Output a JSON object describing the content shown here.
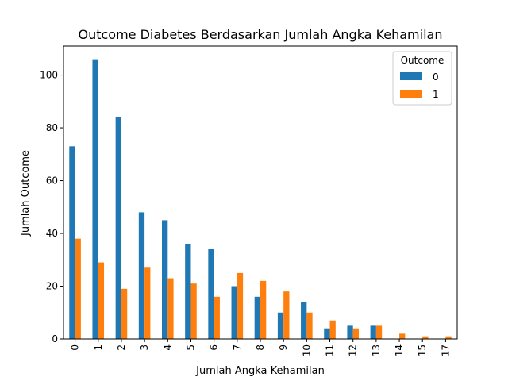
{
  "chart_data": {
    "type": "bar",
    "title": "Outcome Diabetes Berdasarkan Jumlah Angka Kehamilan",
    "xlabel": "Jumlah Angka Kehamilan",
    "ylabel": "Jumlah Outcome",
    "categories": [
      "0",
      "1",
      "2",
      "3",
      "4",
      "5",
      "6",
      "7",
      "8",
      "9",
      "10",
      "11",
      "12",
      "13",
      "14",
      "15",
      "17"
    ],
    "ylim": [
      0,
      111
    ],
    "yticks": [
      0,
      20,
      40,
      60,
      80,
      100
    ],
    "grid": false,
    "legend": {
      "title": "Outcome",
      "position": "top-right"
    },
    "series": [
      {
        "name": "0",
        "color": "#1f77b4",
        "values": [
          73,
          106,
          84,
          48,
          45,
          36,
          34,
          20,
          16,
          10,
          14,
          4,
          5,
          5,
          0,
          0,
          0
        ]
      },
      {
        "name": "1",
        "color": "#ff7f0e",
        "values": [
          38,
          29,
          19,
          27,
          23,
          21,
          16,
          25,
          22,
          18,
          10,
          7,
          4,
          5,
          2,
          1,
          1
        ]
      }
    ]
  }
}
